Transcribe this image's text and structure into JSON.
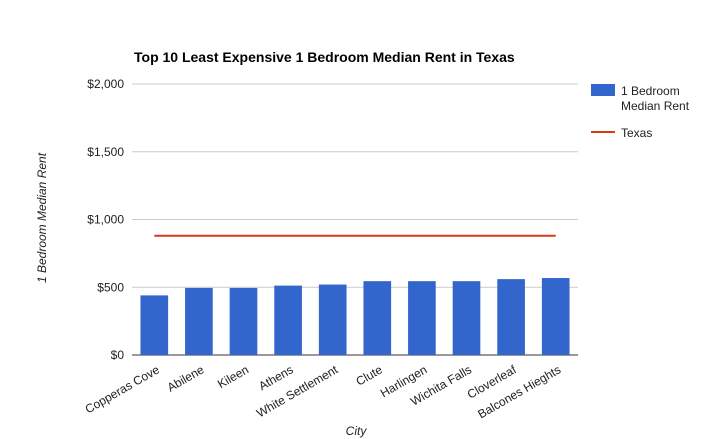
{
  "chart_data": {
    "type": "bar",
    "title": "Top 10 Least Expensive 1 Bedroom Median Rent in Texas",
    "xlabel": "City",
    "ylabel": "1 Bedroom Median Rent",
    "categories": [
      "Copperas Cove",
      "Abilene",
      "Kileen",
      "Athens",
      "White Settlement",
      "Clute",
      "Harlingen",
      "Wichita Falls",
      "Cloverleaf",
      "Balcones Hieghts"
    ],
    "series": [
      {
        "name": "1 Bedroom Median Rent",
        "type": "bar",
        "color": "#3366cc",
        "values": [
          440,
          495,
          495,
          512,
          520,
          545,
          545,
          545,
          560,
          568
        ]
      },
      {
        "name": "Texas",
        "type": "line",
        "color": "#dc3912",
        "values": [
          880,
          880,
          880,
          880,
          880,
          880,
          880,
          880,
          880,
          880
        ]
      }
    ],
    "ylim": [
      0,
      2000
    ],
    "yticks": [
      0,
      500,
      1000,
      1500,
      2000
    ],
    "ytick_labels": [
      "$0",
      "$500",
      "$1,000",
      "$1,500",
      "$2,000"
    ],
    "legend": {
      "placement": "right",
      "entries": [
        {
          "lines": [
            "1 Bedroom",
            "Median Rent"
          ],
          "marker": "box",
          "color": "#3366cc"
        },
        {
          "lines": [
            "Texas"
          ],
          "marker": "line",
          "color": "#dc3912"
        }
      ]
    },
    "grid": true
  }
}
